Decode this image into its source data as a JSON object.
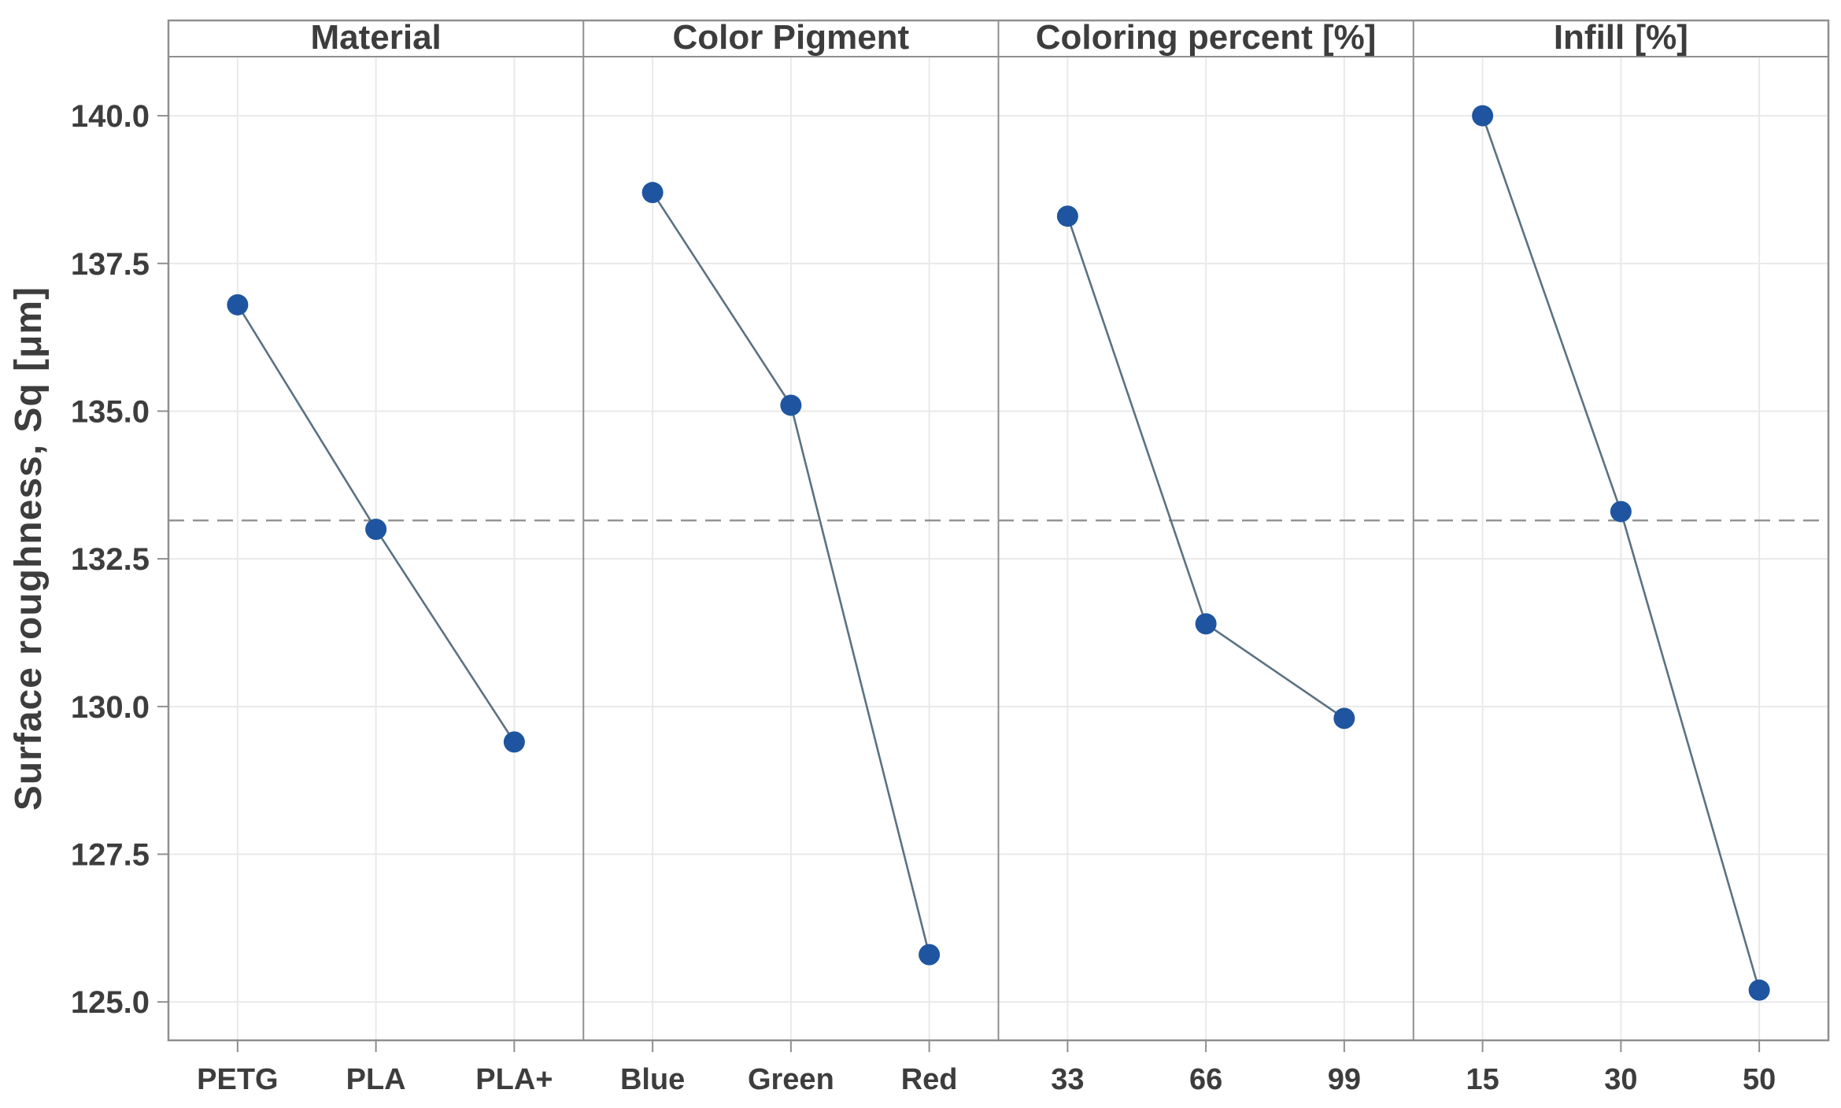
{
  "chart_data": {
    "type": "line",
    "description": "Main effects plot with four factor panels sharing one y-axis",
    "ylabel": "Surface roughness, Sq [μm]",
    "ylim": [
      124.35,
      141.0
    ],
    "yticks": [
      125.0,
      127.5,
      130.0,
      132.5,
      135.0,
      137.5,
      140.0
    ],
    "ytick_format_decimals": 1,
    "mean_line": 133.15,
    "mean_line_style": "dashed",
    "grid": true,
    "legend": null,
    "panels": [
      {
        "label": "Material",
        "categories": [
          "PETG",
          "PLA",
          "PLA+"
        ],
        "values": [
          136.8,
          133.0,
          129.4
        ]
      },
      {
        "label": "Color Pigment",
        "categories": [
          "Blue",
          "Green",
          "Red"
        ],
        "values": [
          138.7,
          135.1,
          125.8
        ]
      },
      {
        "label": "Coloring percent [%]",
        "categories": [
          "33",
          "66",
          "99"
        ],
        "values": [
          138.3,
          131.4,
          129.8
        ]
      },
      {
        "label": "Infill [%]",
        "categories": [
          "15",
          "30",
          "50"
        ],
        "values": [
          140.0,
          133.3,
          125.2
        ]
      }
    ],
    "colors": {
      "marker": "#1f55a0",
      "line": "#5b7282",
      "grid": "#e9e9e9",
      "frame": "#8f8f8f",
      "mean": "#8a8a8a",
      "text": "#3d3d3d",
      "background": "#ffffff"
    }
  }
}
